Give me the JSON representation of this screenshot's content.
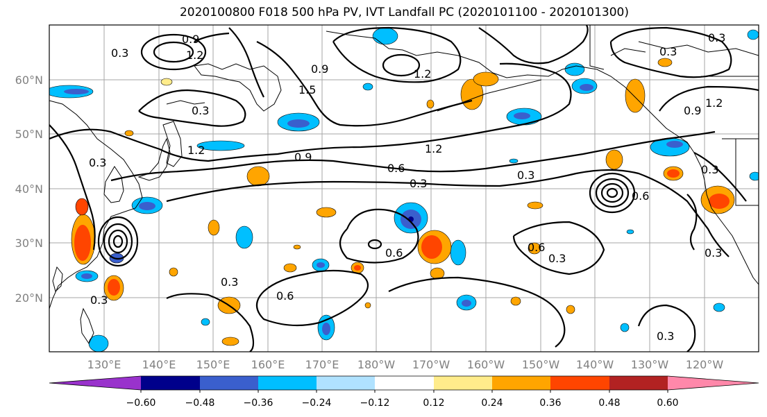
{
  "title": "2020100800 F018 500 hPa PV, IVT Landfall PC (2020101100 - 2020101300)",
  "lat_labels": [
    "60°N",
    "50°N",
    "40°N",
    "30°N",
    "20°N"
  ],
  "lon_labels": [
    "130°E",
    "140°E",
    "150°E",
    "160°E",
    "170°E",
    "180°W",
    "170°W",
    "160°W",
    "150°W",
    "140°W",
    "130°W",
    "120°W"
  ],
  "contour_labels": [
    "0.3",
    "0.9",
    "1.2",
    "1.5",
    "0.3",
    "0.9",
    "1.2",
    "0.9",
    "0.6",
    "0.3",
    "1.2",
    "0.3",
    "1.2",
    "0.3",
    "0.3",
    "0.6",
    "0.3",
    "0.6",
    "0.3",
    "0.6",
    "0.3",
    "0.9",
    "1.2",
    "0.3",
    "0.3",
    "0.3",
    "0.6",
    "0.3"
  ],
  "colorbar": {
    "ticks": [
      "−0.60",
      "−0.48",
      "−0.36",
      "−0.24",
      "−0.12",
      "0.12",
      "0.24",
      "0.36",
      "0.48",
      "0.60"
    ],
    "colors": [
      "#9932cc",
      "#00008b",
      "#3a5fcd",
      "#00bfff",
      "#b0e2ff",
      "#ffffff",
      "#ffec8b",
      "#ffa500",
      "#ff4500",
      "#b22222",
      "#ff88aa"
    ]
  }
}
